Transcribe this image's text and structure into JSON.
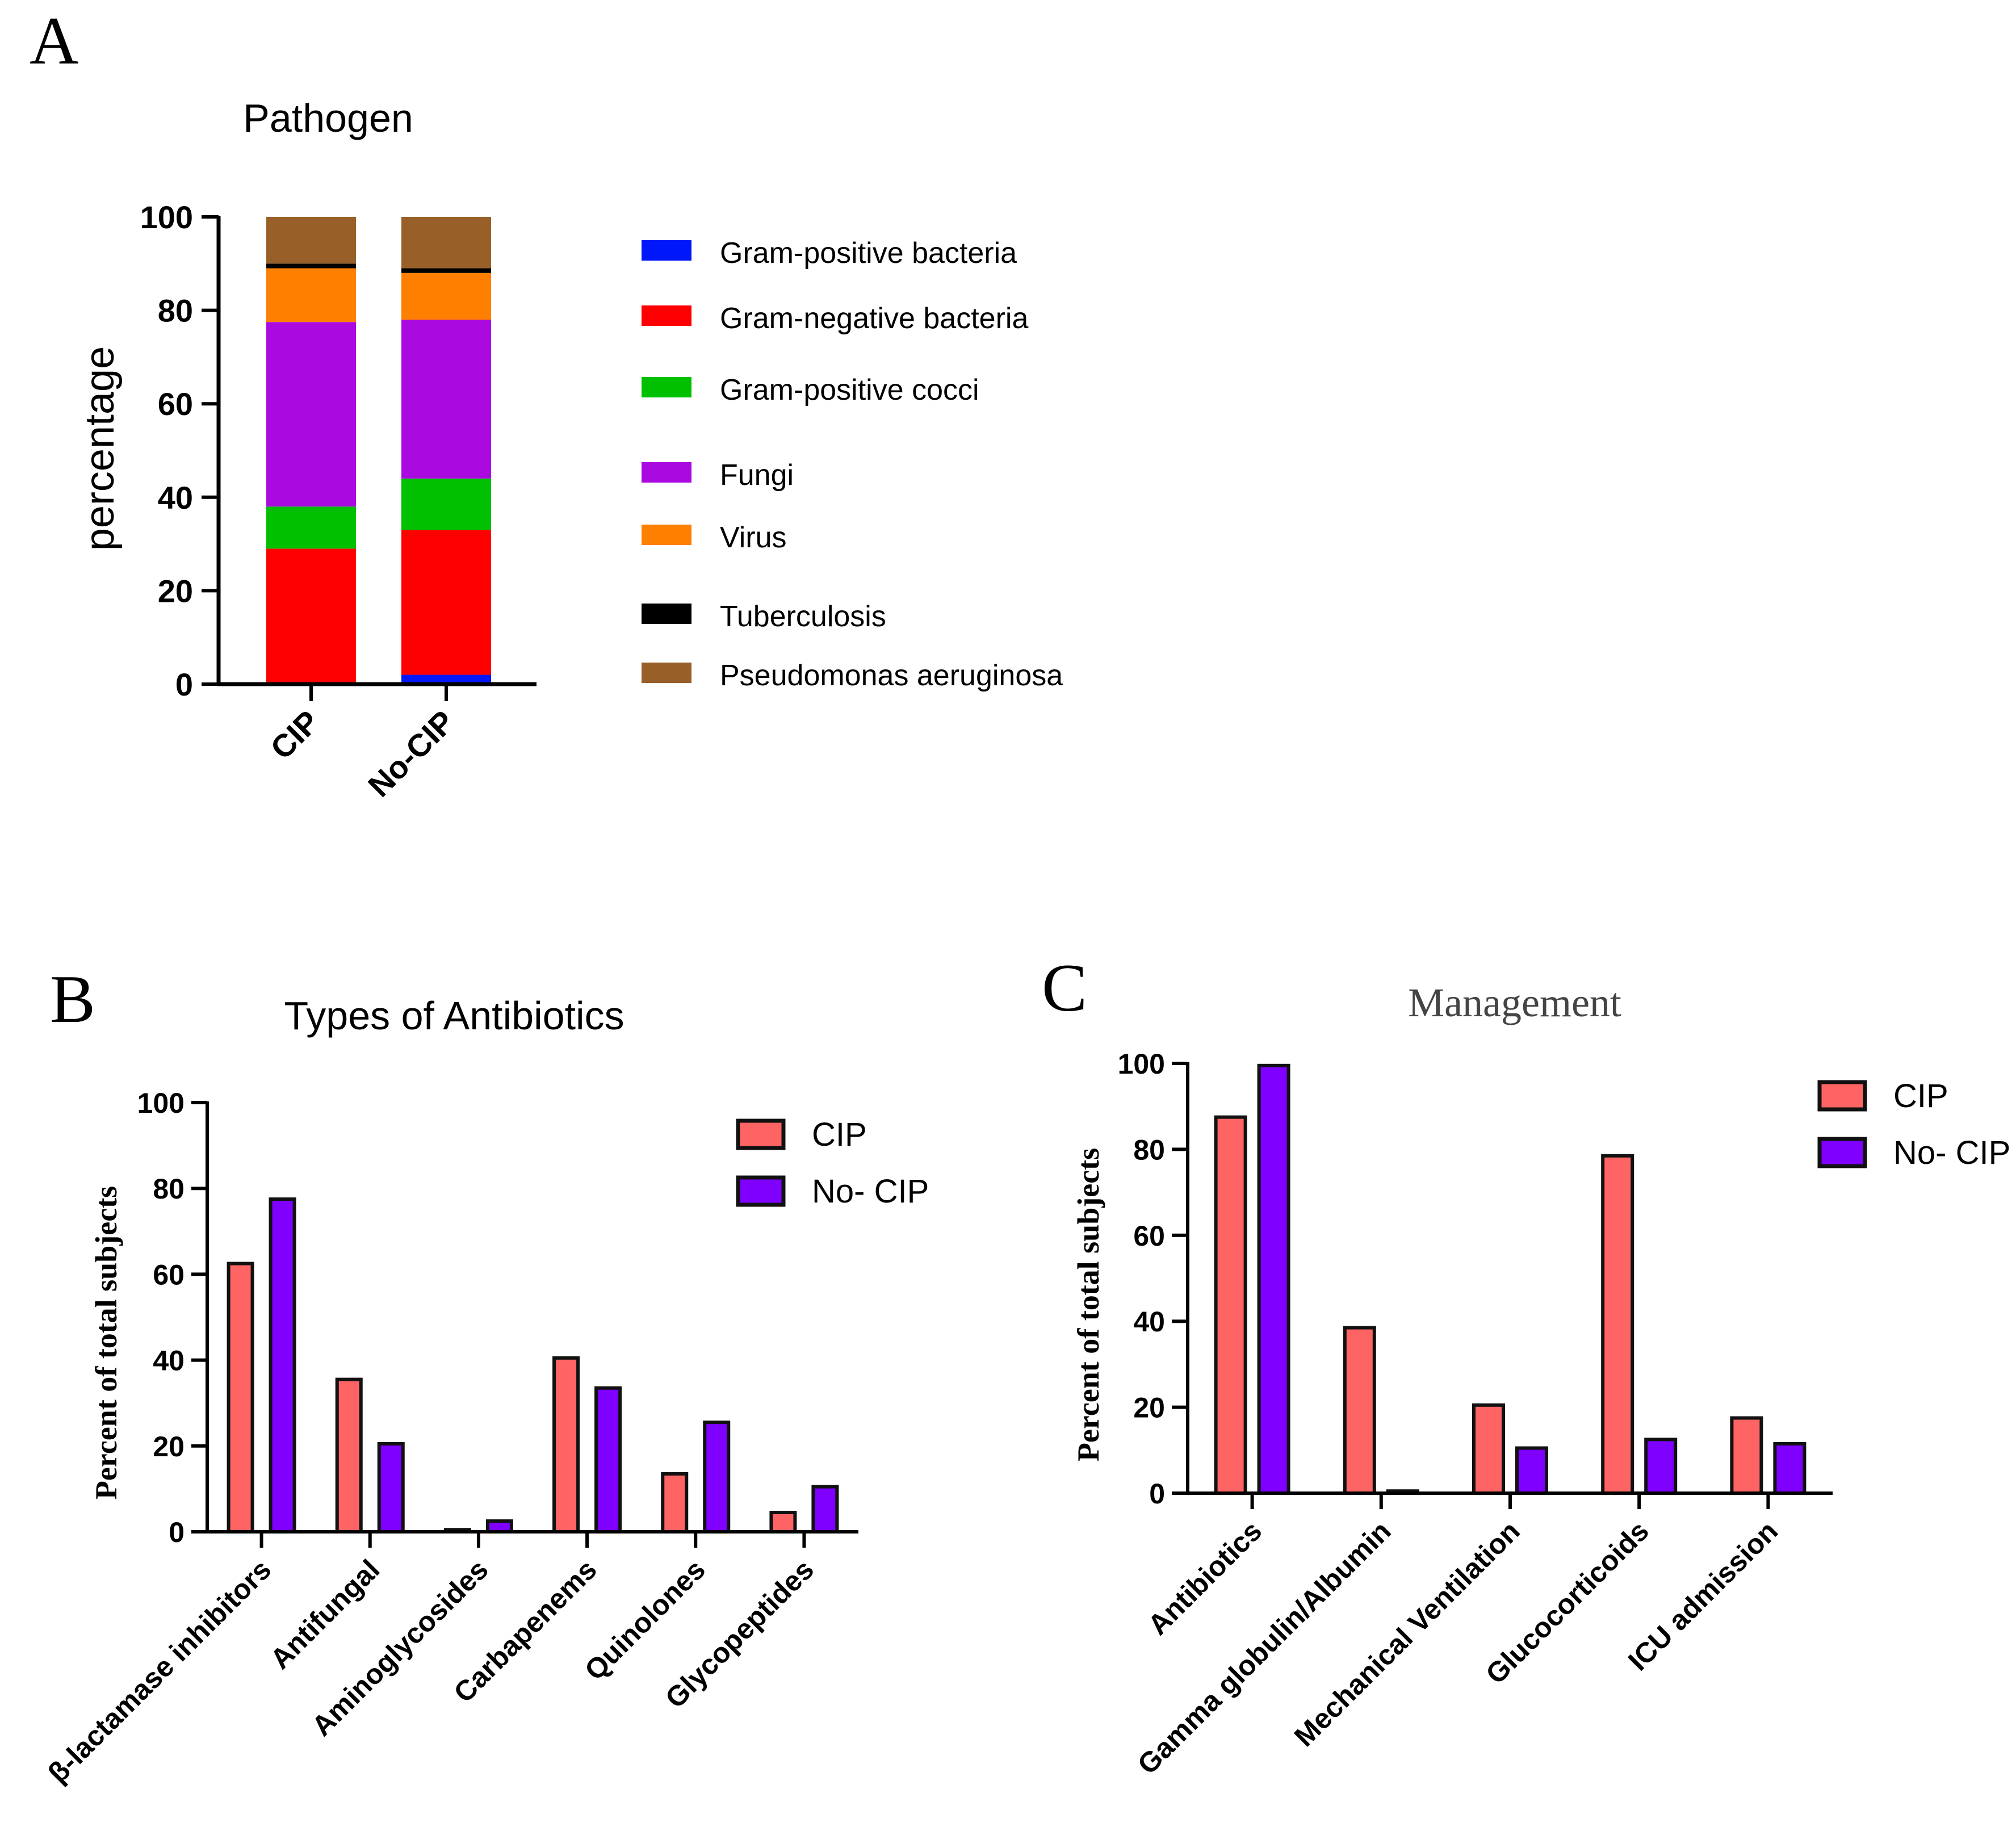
{
  "colors": {
    "gram_positive_bacteria": "#0018f9",
    "gram_negative_bacteria": "#ff0000",
    "gram_positive_cocci": "#00c000",
    "fungi": "#aa0ae0",
    "virus": "#ff8000",
    "tuberculosis": "#000000",
    "pseudomonas": "#986028",
    "cip_bar": "#ff6464",
    "nocip_bar": "#7f00ff",
    "axis": "#000000"
  },
  "chart_data": [
    {
      "panel_label": "A",
      "type": "bar",
      "stacked": true,
      "title": "Pathogen",
      "xlabel": "",
      "ylabel": "percentage",
      "ylim": [
        0,
        100
      ],
      "yticks": [
        "0",
        "20",
        "40",
        "60",
        "80",
        "100"
      ],
      "categories": [
        "CIP",
        "No-CIP"
      ],
      "legend_position": "right",
      "series": [
        {
          "name": "Gram-positive bacteria",
          "color": "#0018f9",
          "values": [
            0,
            2
          ]
        },
        {
          "name": "Gram-negative bacteria",
          "color": "#ff0000",
          "values": [
            29,
            31
          ]
        },
        {
          "name": "Gram-positive cocci",
          "color": "#00c000",
          "values": [
            9,
            11
          ]
        },
        {
          "name": "Fungi",
          "color": "#aa0ae0",
          "values": [
            39.5,
            34
          ]
        },
        {
          "name": "Virus",
          "color": "#ff8000",
          "values": [
            11.5,
            10
          ]
        },
        {
          "name": "Tuberculosis",
          "color": "#000000",
          "values": [
            1,
            1
          ]
        },
        {
          "name": "Pseudomonas aeruginosa",
          "color": "#986028",
          "values": [
            10,
            11
          ]
        }
      ]
    },
    {
      "panel_label": "B",
      "type": "bar",
      "title": "Types of Antibiotics",
      "xlabel": "",
      "ylabel": "Percent of total subjects",
      "ylim": [
        0,
        100
      ],
      "yticks": [
        "0",
        "20",
        "40",
        "60",
        "80",
        "100"
      ],
      "categories": [
        "β-lactamase inhibitors",
        "Antifungal",
        "Aminoglycosides",
        "Carbapenems",
        "Quinolones",
        "Glycopeptides"
      ],
      "legend_position": "top-right",
      "series": [
        {
          "name": "CIP",
          "color": "#ff6464",
          "values": [
            62.5,
            35.5,
            0.5,
            40.5,
            13.5,
            4.5
          ]
        },
        {
          "name": "No- CIP",
          "color": "#7f00ff",
          "values": [
            77.5,
            20.5,
            2.5,
            33.5,
            25.5,
            10.5
          ]
        }
      ]
    },
    {
      "panel_label": "C",
      "type": "bar",
      "title": "Management",
      "xlabel": "",
      "ylabel": "Percent of total subjects",
      "ylim": [
        0,
        100
      ],
      "yticks": [
        "0",
        "20",
        "40",
        "60",
        "80",
        "100"
      ],
      "categories": [
        "Antibiotics",
        "Gamma globulin/Albumin",
        "Mechanical Ventilation",
        "Glucocorticoids",
        "ICU admission"
      ],
      "legend_position": "top-right",
      "series": [
        {
          "name": "CIP",
          "color": "#ff6464",
          "values": [
            87.5,
            38.5,
            20.5,
            78.5,
            17.5
          ]
        },
        {
          "name": "No- CIP",
          "color": "#7f00ff",
          "values": [
            99.5,
            0.5,
            10.5,
            12.5,
            11.5
          ]
        }
      ]
    }
  ]
}
